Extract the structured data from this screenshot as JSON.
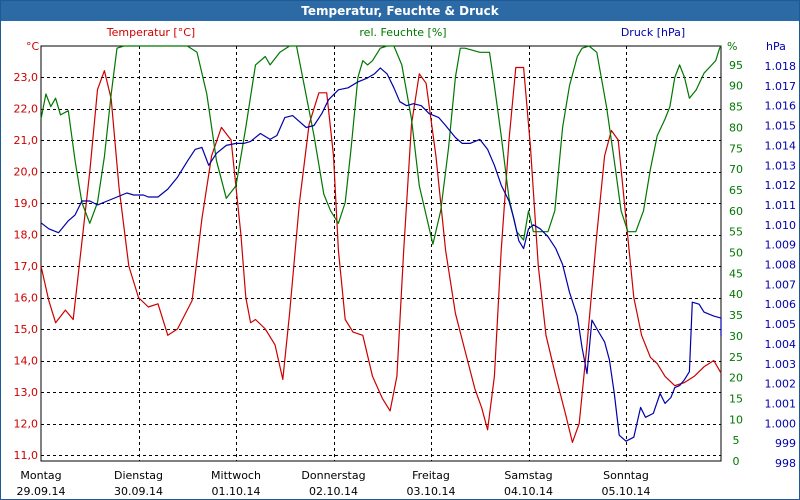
{
  "window": {
    "title": "Temperatur, Feuchte & Druck"
  },
  "colors": {
    "temperature": "#cc0000",
    "humidity": "#007700",
    "pressure": "#0000aa",
    "grid": "#000000",
    "title_bar": "#2c6aa5"
  },
  "chart_data": {
    "type": "line",
    "title": "Temperatur, Feuchte & Druck",
    "x_range": [
      0,
      7
    ],
    "x_days": [
      {
        "weekday": "Montag",
        "date": "29.09.14"
      },
      {
        "weekday": "Dienstag",
        "date": "30.09.14"
      },
      {
        "weekday": "Mittwoch",
        "date": "01.10.14"
      },
      {
        "weekday": "Donnerstag",
        "date": "02.10.14"
      },
      {
        "weekday": "Freitag",
        "date": "03.10.14"
      },
      {
        "weekday": "Samstag",
        "date": "04.10.14"
      },
      {
        "weekday": "Sonntag",
        "date": "05.10.14"
      }
    ],
    "grid": true,
    "axes": {
      "temperature": {
        "label": "Temperatur [°C]",
        "unit": "°C",
        "range": [
          11.0,
          24.0
        ],
        "ticks": [
          "11,0",
          "12,0",
          "13,0",
          "14,0",
          "15,0",
          "16,0",
          "17,0",
          "18,0",
          "19,0",
          "20,0",
          "21,0",
          "22,0",
          "23,0"
        ]
      },
      "humidity": {
        "label": "rel. Feuchte [%]",
        "unit": "%",
        "range": [
          0,
          100
        ],
        "ticks": [
          "0",
          "5",
          "10",
          "15",
          "20",
          "25",
          "30",
          "35",
          "40",
          "45",
          "50",
          "55",
          "60",
          "65",
          "70",
          "75",
          "80",
          "85",
          "90",
          "95"
        ]
      },
      "pressure": {
        "label": "Druck [hPa]",
        "unit": "hPa",
        "range": [
          998,
          1019
        ],
        "ticks": [
          "998",
          "999",
          "1.000",
          "1.001",
          "1.002",
          "1.003",
          "1.004",
          "1.005",
          "1.006",
          "1.007",
          "1.008",
          "1.009",
          "1.010",
          "1.011",
          "1.012",
          "1.013",
          "1.014",
          "1.015",
          "1.016",
          "1.017",
          "1.018"
        ]
      }
    },
    "series": [
      {
        "name": "Temperatur [°C]",
        "axis": "temperature",
        "color": "#cc0000",
        "points": [
          [
            0.0,
            17.0
          ],
          [
            0.08,
            15.9
          ],
          [
            0.15,
            15.2
          ],
          [
            0.25,
            15.6
          ],
          [
            0.33,
            15.3
          ],
          [
            0.5,
            20.0
          ],
          [
            0.58,
            22.6
          ],
          [
            0.65,
            23.2
          ],
          [
            0.72,
            22.3
          ],
          [
            0.8,
            19.5
          ],
          [
            0.9,
            17.0
          ],
          [
            1.0,
            16.0
          ],
          [
            1.1,
            15.7
          ],
          [
            1.2,
            15.8
          ],
          [
            1.3,
            14.8
          ],
          [
            1.4,
            15.0
          ],
          [
            1.55,
            15.9
          ],
          [
            1.65,
            18.5
          ],
          [
            1.75,
            20.5
          ],
          [
            1.85,
            21.4
          ],
          [
            1.95,
            21.0
          ],
          [
            2.05,
            18.0
          ],
          [
            2.1,
            16.0
          ],
          [
            2.15,
            15.2
          ],
          [
            2.2,
            15.3
          ],
          [
            2.3,
            15.0
          ],
          [
            2.4,
            14.5
          ],
          [
            2.48,
            13.4
          ],
          [
            2.55,
            15.5
          ],
          [
            2.65,
            19.0
          ],
          [
            2.75,
            21.5
          ],
          [
            2.85,
            22.5
          ],
          [
            2.93,
            22.5
          ],
          [
            3.0,
            20.5
          ],
          [
            3.05,
            17.5
          ],
          [
            3.12,
            15.3
          ],
          [
            3.2,
            14.9
          ],
          [
            3.3,
            14.8
          ],
          [
            3.4,
            13.5
          ],
          [
            3.5,
            12.8
          ],
          [
            3.58,
            12.4
          ],
          [
            3.65,
            13.5
          ],
          [
            3.72,
            17.5
          ],
          [
            3.8,
            21.5
          ],
          [
            3.88,
            23.1
          ],
          [
            3.95,
            22.8
          ],
          [
            4.05,
            20.5
          ],
          [
            4.15,
            17.5
          ],
          [
            4.25,
            15.5
          ],
          [
            4.35,
            14.3
          ],
          [
            4.45,
            13.1
          ],
          [
            4.52,
            12.5
          ],
          [
            4.58,
            11.8
          ],
          [
            4.65,
            13.5
          ],
          [
            4.72,
            17.5
          ],
          [
            4.8,
            21.0
          ],
          [
            4.87,
            23.3
          ],
          [
            4.95,
            23.3
          ],
          [
            5.02,
            20.8
          ],
          [
            5.1,
            17.0
          ],
          [
            5.18,
            14.8
          ],
          [
            5.28,
            13.5
          ],
          [
            5.38,
            12.3
          ],
          [
            5.45,
            11.4
          ],
          [
            5.52,
            12.0
          ],
          [
            5.6,
            14.5
          ],
          [
            5.7,
            18.0
          ],
          [
            5.78,
            20.5
          ],
          [
            5.85,
            21.3
          ],
          [
            5.92,
            21.0
          ],
          [
            6.0,
            18.5
          ],
          [
            6.08,
            16.0
          ],
          [
            6.16,
            14.8
          ],
          [
            6.25,
            14.1
          ],
          [
            6.32,
            13.9
          ],
          [
            6.4,
            13.5
          ],
          [
            6.5,
            13.2
          ],
          [
            6.6,
            13.3
          ],
          [
            6.7,
            13.5
          ],
          [
            6.8,
            13.8
          ],
          [
            6.9,
            14.0
          ],
          [
            7.0,
            13.6
          ]
        ]
      },
      {
        "name": "rel. Feuchte [%]",
        "axis": "humidity",
        "color": "#007700",
        "points": [
          [
            0.0,
            82
          ],
          [
            0.05,
            88
          ],
          [
            0.1,
            85
          ],
          [
            0.15,
            87
          ],
          [
            0.2,
            83
          ],
          [
            0.28,
            84
          ],
          [
            0.35,
            72
          ],
          [
            0.42,
            62
          ],
          [
            0.5,
            57
          ],
          [
            0.58,
            62
          ],
          [
            0.65,
            73
          ],
          [
            0.72,
            88
          ],
          [
            0.78,
            99
          ],
          [
            0.85,
            100
          ],
          [
            0.95,
            100
          ],
          [
            1.05,
            100
          ],
          [
            1.1,
            100
          ],
          [
            1.2,
            100
          ],
          [
            1.3,
            100
          ],
          [
            1.4,
            100
          ],
          [
            1.5,
            100
          ],
          [
            1.6,
            98
          ],
          [
            1.7,
            88
          ],
          [
            1.8,
            72
          ],
          [
            1.9,
            63
          ],
          [
            2.0,
            66
          ],
          [
            2.1,
            80
          ],
          [
            2.2,
            95
          ],
          [
            2.3,
            97
          ],
          [
            2.35,
            95
          ],
          [
            2.45,
            98
          ],
          [
            2.55,
            100
          ],
          [
            2.62,
            100
          ],
          [
            2.7,
            90
          ],
          [
            2.8,
            78
          ],
          [
            2.9,
            64
          ],
          [
            2.97,
            60
          ],
          [
            3.05,
            57
          ],
          [
            3.12,
            62
          ],
          [
            3.18,
            75
          ],
          [
            3.25,
            92
          ],
          [
            3.3,
            96
          ],
          [
            3.35,
            95
          ],
          [
            3.4,
            96
          ],
          [
            3.48,
            99
          ],
          [
            3.55,
            100
          ],
          [
            3.62,
            100
          ],
          [
            3.7,
            95
          ],
          [
            3.8,
            82
          ],
          [
            3.88,
            66
          ],
          [
            3.95,
            59
          ],
          [
            4.02,
            52
          ],
          [
            4.1,
            60
          ],
          [
            4.18,
            75
          ],
          [
            4.25,
            92
          ],
          [
            4.3,
            99
          ],
          [
            4.35,
            99
          ],
          [
            4.5,
            98
          ],
          [
            4.6,
            98
          ],
          [
            4.65,
            90
          ],
          [
            4.72,
            78
          ],
          [
            4.8,
            63
          ],
          [
            4.88,
            55
          ],
          [
            4.95,
            53
          ],
          [
            5.0,
            60
          ],
          [
            5.05,
            55
          ],
          [
            5.12,
            55
          ],
          [
            5.2,
            55
          ],
          [
            5.27,
            60
          ],
          [
            5.35,
            80
          ],
          [
            5.42,
            90
          ],
          [
            5.5,
            97
          ],
          [
            5.55,
            99
          ],
          [
            5.62,
            100
          ],
          [
            5.7,
            98
          ],
          [
            5.8,
            85
          ],
          [
            5.88,
            72
          ],
          [
            5.95,
            60
          ],
          [
            6.02,
            55
          ],
          [
            6.1,
            55
          ],
          [
            6.18,
            60
          ],
          [
            6.25,
            70
          ],
          [
            6.32,
            78
          ],
          [
            6.4,
            82
          ],
          [
            6.45,
            85
          ],
          [
            6.5,
            92
          ],
          [
            6.55,
            95
          ],
          [
            6.6,
            92
          ],
          [
            6.65,
            87
          ],
          [
            6.72,
            89
          ],
          [
            6.8,
            93
          ],
          [
            6.88,
            95
          ],
          [
            6.92,
            96
          ],
          [
            6.96,
            99
          ],
          [
            7.0,
            100
          ]
        ]
      },
      {
        "name": "Druck [hPa]",
        "axis": "pressure",
        "color": "#0000aa",
        "points": [
          [
            0.0,
            1010.1
          ],
          [
            0.08,
            1009.8
          ],
          [
            0.18,
            1009.6
          ],
          [
            0.28,
            1010.2
          ],
          [
            0.35,
            1010.5
          ],
          [
            0.42,
            1011.2
          ],
          [
            0.5,
            1011.2
          ],
          [
            0.58,
            1011.0
          ],
          [
            0.68,
            1011.2
          ],
          [
            0.78,
            1011.4
          ],
          [
            0.88,
            1011.6
          ],
          [
            0.95,
            1011.5
          ],
          [
            1.05,
            1011.5
          ],
          [
            1.1,
            1011.4
          ],
          [
            1.2,
            1011.4
          ],
          [
            1.3,
            1011.8
          ],
          [
            1.4,
            1012.4
          ],
          [
            1.5,
            1013.2
          ],
          [
            1.58,
            1013.8
          ],
          [
            1.65,
            1013.9
          ],
          [
            1.72,
            1013.0
          ],
          [
            1.8,
            1013.6
          ],
          [
            1.9,
            1014.0
          ],
          [
            2.0,
            1014.1
          ],
          [
            2.08,
            1014.1
          ],
          [
            2.15,
            1014.2
          ],
          [
            2.25,
            1014.6
          ],
          [
            2.35,
            1014.3
          ],
          [
            2.42,
            1014.5
          ],
          [
            2.5,
            1015.4
          ],
          [
            2.58,
            1015.5
          ],
          [
            2.65,
            1015.2
          ],
          [
            2.72,
            1014.9
          ],
          [
            2.8,
            1015.0
          ],
          [
            2.88,
            1015.6
          ],
          [
            2.95,
            1016.3
          ],
          [
            3.05,
            1016.8
          ],
          [
            3.15,
            1016.9
          ],
          [
            3.25,
            1017.2
          ],
          [
            3.35,
            1017.4
          ],
          [
            3.42,
            1017.6
          ],
          [
            3.48,
            1017.9
          ],
          [
            3.55,
            1017.6
          ],
          [
            3.62,
            1016.9
          ],
          [
            3.68,
            1016.2
          ],
          [
            3.75,
            1016.0
          ],
          [
            3.82,
            1016.1
          ],
          [
            3.9,
            1016.0
          ],
          [
            3.98,
            1015.6
          ],
          [
            4.08,
            1015.4
          ],
          [
            4.15,
            1015.0
          ],
          [
            4.25,
            1014.4
          ],
          [
            4.32,
            1014.1
          ],
          [
            4.4,
            1014.1
          ],
          [
            4.5,
            1014.3
          ],
          [
            4.58,
            1013.8
          ],
          [
            4.65,
            1013.0
          ],
          [
            4.72,
            1012.0
          ],
          [
            4.8,
            1011.2
          ],
          [
            4.85,
            1010.3
          ],
          [
            4.9,
            1009.2
          ],
          [
            4.95,
            1008.8
          ],
          [
            5.0,
            1009.8
          ],
          [
            5.05,
            1010.0
          ],
          [
            5.12,
            1009.8
          ],
          [
            5.2,
            1009.4
          ],
          [
            5.28,
            1008.8
          ],
          [
            5.35,
            1008.0
          ],
          [
            5.42,
            1006.6
          ],
          [
            5.5,
            1005.4
          ],
          [
            5.55,
            1003.8
          ],
          [
            5.6,
            1002.5
          ],
          [
            5.65,
            1005.2
          ],
          [
            5.72,
            1004.6
          ],
          [
            5.78,
            1004.1
          ],
          [
            5.83,
            1003.2
          ],
          [
            5.88,
            1001.5
          ],
          [
            5.93,
            999.4
          ],
          [
            6.0,
            999.1
          ],
          [
            6.08,
            999.3
          ],
          [
            6.15,
            1000.8
          ],
          [
            6.2,
            1000.3
          ],
          [
            6.28,
            1000.5
          ],
          [
            6.35,
            1001.5
          ],
          [
            6.4,
            1001.0
          ],
          [
            6.46,
            1001.3
          ],
          [
            6.5,
            1001.8
          ],
          [
            6.55,
            1001.9
          ],
          [
            6.6,
            1002.2
          ],
          [
            6.65,
            1002.6
          ],
          [
            6.68,
            1006.1
          ],
          [
            6.75,
            1006.0
          ],
          [
            6.8,
            1005.6
          ],
          [
            6.9,
            1005.4
          ],
          [
            7.0,
            1005.3
          ],
          [
            7.08,
            1004.9
          ],
          [
            7.15,
            1004.4
          ]
        ]
      }
    ]
  }
}
